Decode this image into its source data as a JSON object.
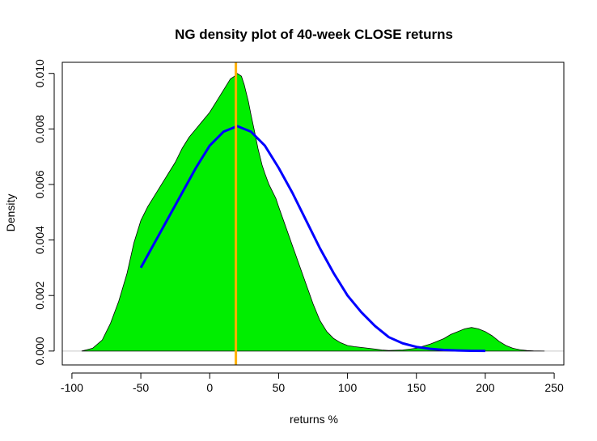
{
  "chart_data": {
    "type": "area",
    "title": "NG density plot of 40-week CLOSE returns",
    "xlabel": "returns %",
    "ylabel": "Density",
    "xlim": [
      -107,
      257
    ],
    "ylim": [
      -0.0005,
      0.0104
    ],
    "x_ticks": [
      -100,
      -50,
      0,
      50,
      100,
      150,
      200,
      250
    ],
    "x_tick_labels": [
      "-100",
      "-50",
      "0",
      "50",
      "100",
      "150",
      "200",
      "250"
    ],
    "y_ticks": [
      0,
      0.002,
      0.004,
      0.006,
      0.008,
      0.01
    ],
    "y_tick_labels": [
      "0.000",
      "0.002",
      "0.004",
      "0.006",
      "0.008",
      "0.010"
    ],
    "grid": false,
    "series": [
      {
        "kind": "filled-density",
        "color": "#00ee00",
        "x": [
          -93,
          -85,
          -78,
          -72,
          -66,
          -60,
          -55,
          -50,
          -45,
          -40,
          -35,
          -30,
          -25,
          -20,
          -15,
          -10,
          -5,
          0,
          5,
          10,
          15,
          18,
          20,
          23,
          25,
          28,
          30,
          33,
          35,
          38,
          40,
          43,
          45,
          48,
          50,
          55,
          60,
          65,
          70,
          75,
          80,
          85,
          90,
          95,
          100,
          105,
          110,
          115,
          120,
          125,
          130,
          140,
          150,
          160,
          165,
          170,
          175,
          180,
          185,
          190,
          195,
          200,
          205,
          210,
          215,
          220,
          225,
          230,
          235,
          243
        ],
        "y": [
          0.0,
          0.0001,
          0.0004,
          0.001,
          0.0018,
          0.0028,
          0.0039,
          0.0047,
          0.0052,
          0.0056,
          0.006,
          0.0064,
          0.0068,
          0.0073,
          0.0077,
          0.008,
          0.0083,
          0.0086,
          0.009,
          0.0094,
          0.0098,
          0.0099,
          0.01,
          0.0099,
          0.0096,
          0.009,
          0.0085,
          0.0078,
          0.0073,
          0.0067,
          0.0064,
          0.006,
          0.0058,
          0.0055,
          0.0052,
          0.0045,
          0.0038,
          0.0031,
          0.0024,
          0.0017,
          0.0011,
          0.0007,
          0.00045,
          0.0003,
          0.0002,
          0.00016,
          0.00013,
          0.0001,
          7e-05,
          4e-05,
          2e-05,
          4e-05,
          0.0001,
          0.00025,
          0.00035,
          0.00045,
          0.0006,
          0.0007,
          0.0008,
          0.00085,
          0.0008,
          0.0007,
          0.00055,
          0.00035,
          0.0002,
          0.0001,
          5e-05,
          2e-05,
          5e-06,
          0.0
        ]
      },
      {
        "kind": "normal-curve",
        "color": "#0000ff",
        "x": [
          -50,
          -40,
          -30,
          -20,
          -10,
          0,
          10,
          20,
          30,
          40,
          50,
          60,
          70,
          80,
          90,
          100,
          110,
          120,
          130,
          140,
          150,
          160,
          170,
          180,
          190,
          200
        ],
        "y": [
          0.003,
          0.0039,
          0.0048,
          0.0057,
          0.0066,
          0.0074,
          0.0079,
          0.0081,
          0.0079,
          0.0074,
          0.0066,
          0.0057,
          0.0047,
          0.0037,
          0.0028,
          0.002,
          0.0014,
          0.0009,
          0.0005,
          0.00028,
          0.00015,
          8e-05,
          4e-05,
          2e-05,
          1e-05,
          5e-06
        ]
      }
    ],
    "vline": {
      "x": 19,
      "color": "#ffb000"
    },
    "baseline_color": "#c8c8c8"
  }
}
